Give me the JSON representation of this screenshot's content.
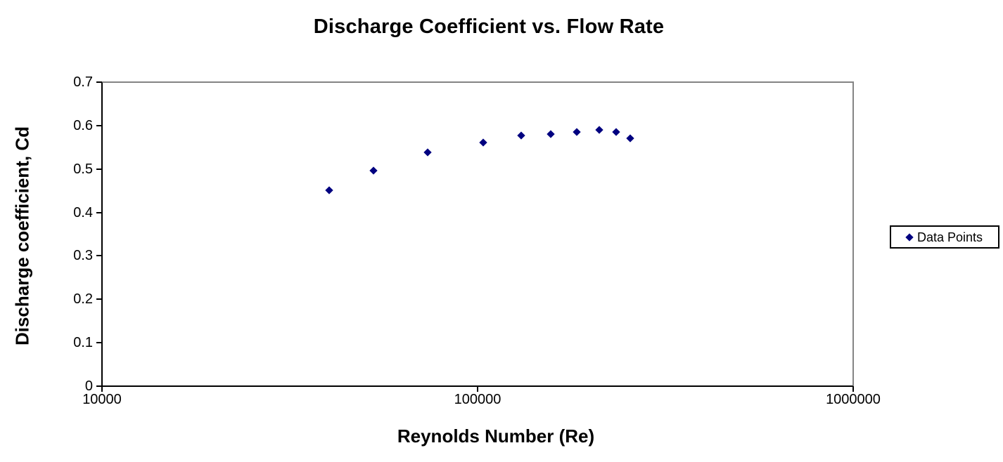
{
  "chart_data": {
    "type": "scatter",
    "title": "Discharge Coefficient vs. Flow Rate",
    "xlabel": "Reynolds Number (Re)",
    "ylabel": "Discharge coefficient, Cd",
    "x_scale": "log",
    "xlim": [
      10000,
      1000000
    ],
    "ylim": [
      0,
      0.7
    ],
    "x_ticks": [
      "10000",
      "100000",
      "1000000"
    ],
    "y_ticks": [
      "0",
      "0.1",
      "0.2",
      "0.3",
      "0.4",
      "0.5",
      "0.6",
      "0.7"
    ],
    "grid": false,
    "legend": {
      "position": "right",
      "entries": [
        {
          "label": "Data Points",
          "marker": "diamond-icon",
          "color": "#000080"
        }
      ]
    },
    "series": [
      {
        "name": "Data Points",
        "marker": "diamond",
        "color": "#000080",
        "points": [
          {
            "x": 40200,
            "y": 0.451
          },
          {
            "x": 52800,
            "y": 0.496
          },
          {
            "x": 73500,
            "y": 0.538
          },
          {
            "x": 103600,
            "y": 0.561
          },
          {
            "x": 130500,
            "y": 0.577
          },
          {
            "x": 156400,
            "y": 0.58
          },
          {
            "x": 183700,
            "y": 0.586
          },
          {
            "x": 211100,
            "y": 0.59
          },
          {
            "x": 233800,
            "y": 0.585
          },
          {
            "x": 254900,
            "y": 0.57
          }
        ]
      }
    ]
  },
  "colors": {
    "marker": "#000080",
    "axis_line": "#000000",
    "plot_border": "#848484",
    "background": "#ffffff",
    "text": "#000000"
  }
}
